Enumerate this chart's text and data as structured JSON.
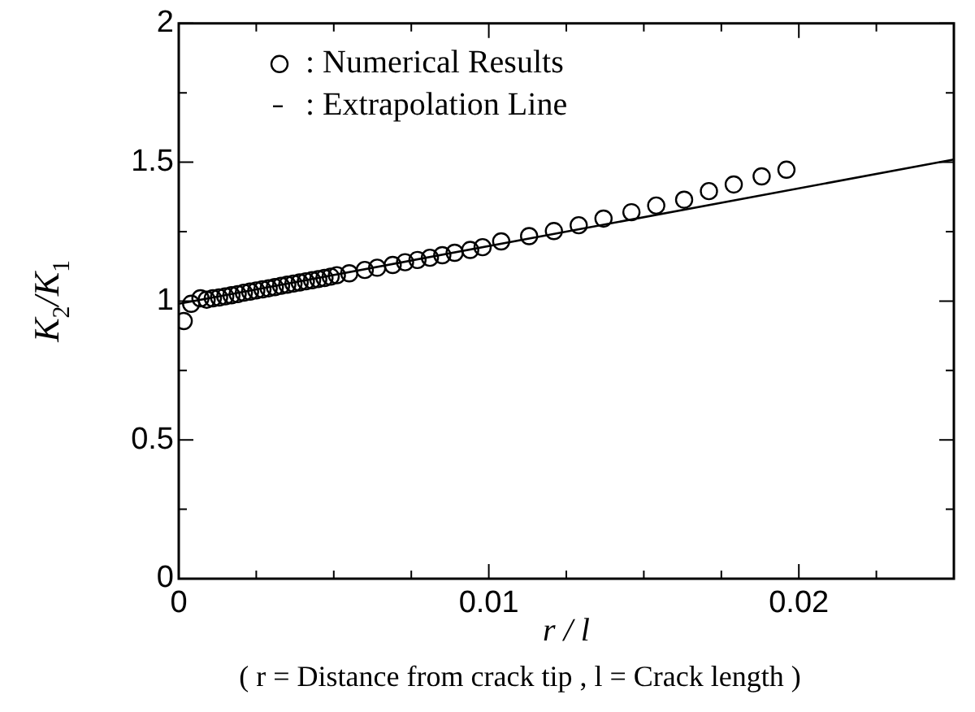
{
  "chart_data": {
    "type": "scatter",
    "xlabel": "r / l",
    "ylabel": "K$_{2}$/K$_{1}$",
    "annotations": [
      "( r = Distance from crack tip , l = Crack length )"
    ],
    "xlim": [
      0,
      0.025
    ],
    "ylim": [
      0,
      2
    ],
    "xticks": [
      0,
      {
        "value": 0.0025,
        "label": null
      },
      {
        "value": 0.005,
        "label": null
      },
      {
        "value": 0.0075,
        "label": null
      },
      0.01,
      {
        "value": 0.0125,
        "label": null
      },
      {
        "value": 0.015,
        "label": null
      },
      {
        "value": 0.0175,
        "label": null
      },
      0.02,
      {
        "value": 0.0225,
        "label": null
      },
      {
        "value": 0.025,
        "label": null
      }
    ],
    "yticks": [
      0,
      {
        "value": 0.25,
        "label": null
      },
      0.5,
      {
        "value": 0.75,
        "label": null
      },
      1,
      {
        "value": 1.25,
        "label": null
      },
      1.5,
      {
        "value": 1.75,
        "label": null
      },
      2
    ],
    "grid": false,
    "legend": "top left",
    "series": [
      {
        "name": ": Numerical Results",
        "marker": "circle",
        "color": "#000000",
        "x": [
          0.00016,
          0.0004,
          0.0007,
          0.0009,
          0.0011,
          0.0013,
          0.0015,
          0.0017,
          0.0019,
          0.0021,
          0.0023,
          0.0025,
          0.0027,
          0.0029,
          0.0031,
          0.0033,
          0.0035,
          0.0037,
          0.0039,
          0.0041,
          0.0043,
          0.0045,
          0.0047,
          0.0049,
          0.0051,
          0.0055,
          0.006,
          0.0064,
          0.0069,
          0.0073,
          0.0077,
          0.0081,
          0.0085,
          0.0089,
          0.0094,
          0.0098,
          0.0104,
          0.0113,
          0.0121,
          0.0129,
          0.0137,
          0.0146,
          0.0154,
          0.0163,
          0.0171,
          0.0179,
          0.0188,
          0.0196
        ],
        "values": [
          0.928,
          0.99,
          1.01,
          1.005,
          1.01,
          1.013,
          1.017,
          1.021,
          1.025,
          1.03,
          1.034,
          1.038,
          1.042,
          1.046,
          1.05,
          1.055,
          1.059,
          1.063,
          1.067,
          1.071,
          1.075,
          1.079,
          1.083,
          1.088,
          1.093,
          1.1,
          1.112,
          1.12,
          1.13,
          1.14,
          1.148,
          1.156,
          1.165,
          1.174,
          1.184,
          1.194,
          1.215,
          1.234,
          1.252,
          1.273,
          1.297,
          1.32,
          1.344,
          1.365,
          1.396,
          1.42,
          1.449,
          1.473
        ]
      },
      {
        "name": ": Extrapolation Line",
        "type": "line",
        "marker": "none",
        "line_style": "solid",
        "color": "#000000",
        "x": [
          0,
          0.025
        ],
        "values": [
          0.99,
          1.51
        ]
      }
    ]
  }
}
